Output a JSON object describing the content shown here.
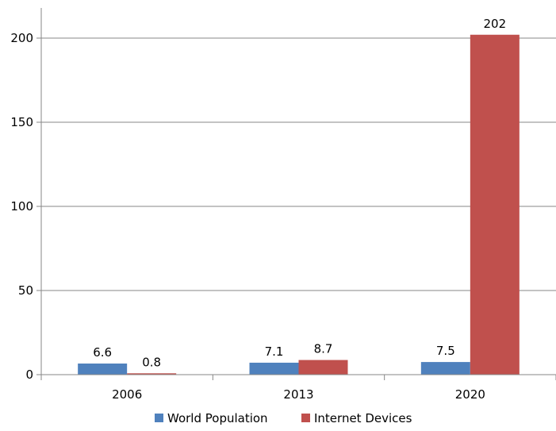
{
  "chart_data": {
    "type": "bar",
    "categories": [
      "2006",
      "2013",
      "2020"
    ],
    "series": [
      {
        "name": "World Population",
        "values": [
          6.6,
          7.1,
          7.5
        ],
        "color": "#4f81bd"
      },
      {
        "name": "Internet Devices",
        "values": [
          0.8,
          8.7,
          202
        ],
        "color": "#c0504d"
      }
    ],
    "ylim": [
      0,
      200
    ],
    "yticks": [
      0,
      50,
      100,
      150,
      200
    ],
    "grid": true,
    "legend": "bottom",
    "data_labels": {
      "World Population": [
        "6.6",
        "7.1",
        "7.5"
      ],
      "Internet Devices": [
        "0.8",
        "8.7",
        "202"
      ]
    }
  }
}
